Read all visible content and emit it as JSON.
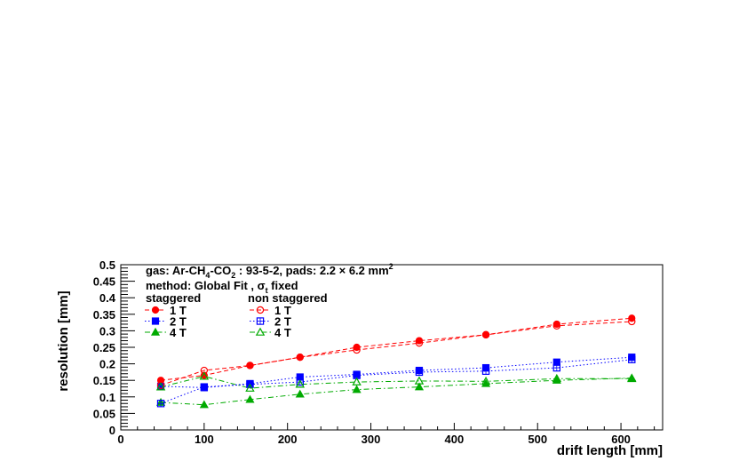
{
  "chart_data": {
    "type": "scatter",
    "title": "",
    "xlabel": "drift length [mm]",
    "ylabel": "resolution [mm]",
    "xlim": [
      0,
      650
    ],
    "ylim": [
      0,
      0.5
    ],
    "xticks": [
      "0",
      "100",
      "200",
      "300",
      "400",
      "500",
      "600"
    ],
    "yticks": [
      "0",
      "0.05",
      "0.1",
      "0.15",
      "0.2",
      "0.25",
      "0.3",
      "0.35",
      "0.4",
      "0.45",
      "0.5"
    ],
    "grid": false,
    "legend": {
      "placement": "top-left",
      "gas_pre": "gas:  Ar-CH",
      "gas_sub1": "4",
      "gas_mid": "-CO",
      "gas_sub2": "2",
      "gas_post": " : 93-5-2, pads: 2.2 × 6.2 mm",
      "gas_sup": "2",
      "method_pre": "method: Global Fit , σ",
      "method_sub": "t",
      "method_post": " fixed",
      "staggered_header": "staggered",
      "nonstaggered_header": "non staggered"
    },
    "series": [
      {
        "name": "1 T",
        "group": "staggered",
        "color": "#ff0000",
        "marker": "filled-circle",
        "line": "dashed",
        "x": [
          48,
          100,
          155,
          215,
          283,
          358,
          438,
          523,
          613
        ],
        "y": [
          0.15,
          0.165,
          0.195,
          0.22,
          0.25,
          0.27,
          0.288,
          0.32,
          0.338
        ]
      },
      {
        "name": "2 T",
        "group": "staggered",
        "color": "#0000ff",
        "marker": "filled-square",
        "line": "dotted",
        "x": [
          48,
          100,
          155,
          215,
          283,
          358,
          438,
          523,
          613
        ],
        "y": [
          0.132,
          0.128,
          0.14,
          0.16,
          0.168,
          0.18,
          0.188,
          0.205,
          0.22
        ]
      },
      {
        "name": "4 T",
        "group": "staggered",
        "color": "#00aa00",
        "marker": "filled-triangle",
        "line": "dashdot",
        "x": [
          48,
          100,
          155,
          215,
          283,
          358,
          438,
          523,
          613
        ],
        "y": [
          0.083,
          0.076,
          0.092,
          0.108,
          0.122,
          0.13,
          0.14,
          0.15,
          0.157
        ]
      },
      {
        "name": "1 T",
        "group": "non staggered",
        "color": "#ff0000",
        "marker": "open-circle",
        "line": "dashed",
        "x": [
          48,
          100,
          155,
          215,
          283,
          358,
          438,
          523,
          613
        ],
        "y": [
          0.135,
          0.18,
          0.195,
          0.22,
          0.242,
          0.263,
          0.288,
          0.315,
          0.328
        ]
      },
      {
        "name": "2 T",
        "group": "non staggered",
        "color": "#0000ff",
        "marker": "open-square",
        "line": "dotted",
        "x": [
          48,
          100,
          155,
          215,
          283,
          358,
          438,
          523,
          613
        ],
        "y": [
          0.08,
          0.13,
          0.138,
          0.145,
          0.165,
          0.175,
          0.178,
          0.188,
          0.213
        ]
      },
      {
        "name": "4 T",
        "group": "non staggered",
        "color": "#00aa00",
        "marker": "open-triangle",
        "line": "dashdot",
        "x": [
          48,
          100,
          155,
          215,
          283,
          358,
          438,
          523,
          613
        ],
        "y": [
          0.13,
          0.162,
          0.126,
          0.138,
          0.145,
          0.148,
          0.147,
          0.155,
          0.155
        ]
      }
    ]
  }
}
